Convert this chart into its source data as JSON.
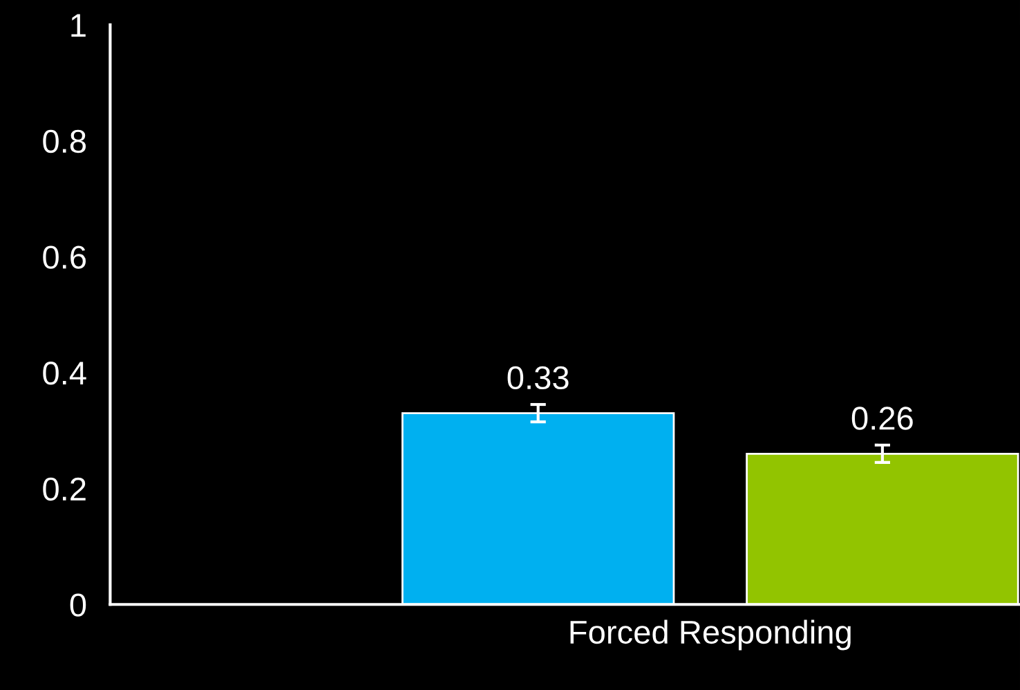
{
  "chart_data": {
    "type": "bar",
    "categories": [
      "Forced Responding"
    ],
    "series": [
      {
        "color": "#00b0f0",
        "values": [
          0.33
        ],
        "errors": [
          0.015
        ]
      },
      {
        "color": "#92c400",
        "values": [
          0.26
        ],
        "errors": [
          0.015
        ]
      }
    ],
    "ylim": [
      0,
      1
    ],
    "yticks": [
      0,
      0.2,
      0.4,
      0.6,
      0.8,
      1
    ],
    "data_labels": true,
    "grid": false,
    "legend": false
  }
}
